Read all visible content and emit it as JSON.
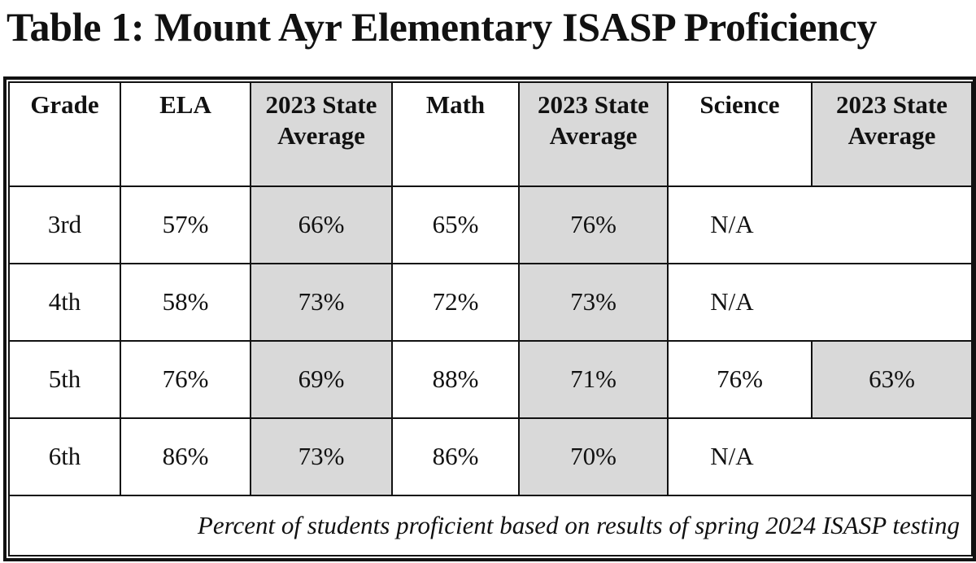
{
  "header": {
    "title": "Table 1: Mount Ayr Elementary ISASP Proficiency"
  },
  "table": {
    "columns": [
      "Grade",
      "ELA",
      "2023 State Average",
      "Math",
      "2023 State Average",
      "Science",
      "2023 State Average"
    ],
    "rows": [
      [
        "3rd",
        "57%",
        "66%",
        "65%",
        "76%",
        "N/A"
      ],
      [
        "4th",
        "58%",
        "73%",
        "72%",
        "73%",
        "N/A"
      ],
      [
        "5th",
        "76%",
        "69%",
        "88%",
        "71%",
        "76%",
        "63%"
      ],
      [
        "6th",
        "86%",
        "73%",
        "86%",
        "70%",
        "N/A"
      ]
    ],
    "footnote": "Percent of students proficient based on results of spring 2024 ISASP testing"
  }
}
